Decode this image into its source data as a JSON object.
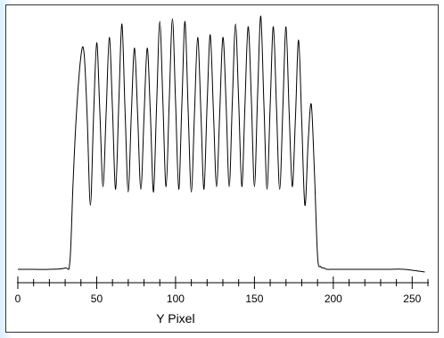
{
  "chart_data": {
    "type": "line",
    "title": "",
    "xlabel": "Y Pixel",
    "ylabel": "",
    "xlim": [
      0,
      260
    ],
    "ylim": [
      0,
      1
    ],
    "grid": false,
    "x_ticks": [
      0,
      50,
      100,
      150,
      200,
      250
    ],
    "x_tick_labels": [
      "0",
      "50",
      "100",
      "150",
      "200",
      "250"
    ],
    "series": [
      {
        "name": "",
        "color": "#000000",
        "x": [
          0,
          10,
          20,
          30,
          33,
          35,
          37,
          40,
          42,
          44,
          46,
          48,
          50,
          52,
          54,
          56,
          58,
          60,
          62,
          64,
          66,
          68,
          70,
          72,
          74,
          76,
          78,
          80,
          82,
          84,
          86,
          88,
          90,
          92,
          94,
          96,
          98,
          100,
          102,
          104,
          106,
          108,
          110,
          112,
          114,
          116,
          118,
          120,
          122,
          124,
          126,
          128,
          130,
          132,
          134,
          136,
          138,
          140,
          142,
          144,
          146,
          148,
          150,
          152,
          154,
          156,
          158,
          160,
          162,
          164,
          166,
          168,
          170,
          172,
          174,
          176,
          178,
          180,
          182,
          184,
          186,
          188,
          190,
          192,
          194,
          196,
          198,
          200,
          202,
          204,
          206,
          208,
          210,
          212,
          214,
          216,
          218,
          220,
          225,
          235,
          245,
          258
        ],
        "y": [
          0.03,
          0.03,
          0.03,
          0.035,
          0.06,
          0.35,
          0.6,
          0.83,
          0.84,
          0.6,
          0.27,
          0.6,
          0.88,
          0.62,
          0.34,
          0.62,
          0.9,
          0.63,
          0.33,
          0.65,
          0.95,
          0.62,
          0.32,
          0.62,
          0.86,
          0.6,
          0.33,
          0.6,
          0.86,
          0.62,
          0.32,
          0.65,
          0.96,
          0.65,
          0.34,
          0.66,
          0.97,
          0.66,
          0.33,
          0.65,
          0.96,
          0.62,
          0.32,
          0.62,
          0.9,
          0.63,
          0.33,
          0.65,
          0.91,
          0.62,
          0.34,
          0.62,
          0.9,
          0.66,
          0.34,
          0.66,
          0.95,
          0.66,
          0.34,
          0.65,
          0.94,
          0.68,
          0.34,
          0.68,
          0.98,
          0.65,
          0.33,
          0.65,
          0.94,
          0.63,
          0.33,
          0.63,
          0.94,
          0.62,
          0.34,
          0.6,
          0.89,
          0.58,
          0.27,
          0.5,
          0.65,
          0.4,
          0.08,
          0.04,
          0.035,
          0.03,
          0.03,
          0.03,
          0.03,
          0.03,
          0.03,
          0.03,
          0.03,
          0.03,
          0.03,
          0.03,
          0.03,
          0.03,
          0.03,
          0.03,
          0.03,
          0.02
        ]
      }
    ]
  }
}
